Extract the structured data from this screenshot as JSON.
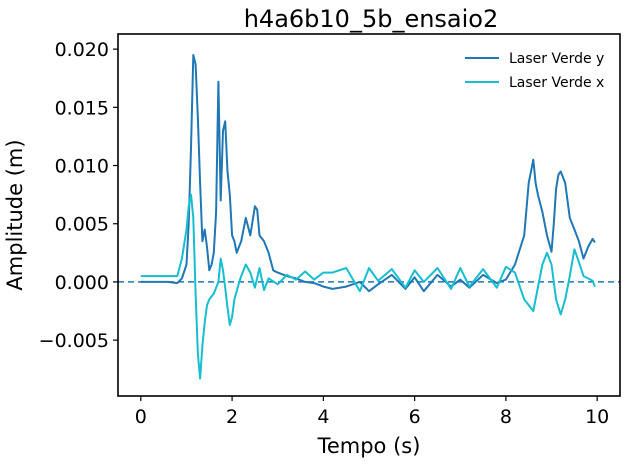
{
  "chart_data": {
    "type": "line",
    "title": "h4a6b10_5b_ensaio2",
    "xlabel": "Tempo (s)",
    "ylabel": "Amplitude (m)",
    "xlim": [
      -0.5,
      10.5
    ],
    "ylim": [
      -0.0098,
      0.0213
    ],
    "x_ticks": [
      0,
      2,
      4,
      6,
      8,
      10
    ],
    "x_tick_labels": [
      "0",
      "2",
      "4",
      "6",
      "8",
      "10"
    ],
    "y_ticks": [
      -0.005,
      0.0,
      0.005,
      0.01,
      0.015,
      0.02
    ],
    "y_tick_labels": [
      "−0.005",
      "0.000",
      "0.005",
      "0.010",
      "0.015",
      "0.020"
    ],
    "grid": false,
    "legend_position": "top-right",
    "reference_line": {
      "y": 0.0,
      "style": "dashed",
      "color": "#1f77b4"
    },
    "series": [
      {
        "name": "Laser Verde y",
        "color": "#1f77b4",
        "x": [
          0.0,
          0.3,
          0.6,
          0.8,
          0.9,
          1.0,
          1.05,
          1.1,
          1.15,
          1.2,
          1.25,
          1.3,
          1.35,
          1.4,
          1.45,
          1.5,
          1.55,
          1.6,
          1.65,
          1.7,
          1.75,
          1.8,
          1.85,
          1.9,
          1.95,
          2.0,
          2.05,
          2.1,
          2.2,
          2.3,
          2.4,
          2.5,
          2.55,
          2.6,
          2.7,
          2.8,
          2.9,
          3.0,
          3.2,
          3.4,
          3.6,
          3.8,
          4.0,
          4.2,
          4.5,
          4.8,
          5.0,
          5.2,
          5.5,
          5.8,
          6.0,
          6.2,
          6.5,
          6.8,
          7.0,
          7.2,
          7.5,
          7.8,
          8.0,
          8.2,
          8.4,
          8.5,
          8.55,
          8.6,
          8.65,
          8.7,
          8.8,
          8.9,
          9.0,
          9.05,
          9.1,
          9.15,
          9.2,
          9.25,
          9.3,
          9.35,
          9.4,
          9.5,
          9.6,
          9.7,
          9.8,
          9.9,
          9.95
        ],
        "values": [
          0.0,
          0.0,
          0.0,
          -0.0001,
          0.0003,
          0.0015,
          0.005,
          0.0115,
          0.0195,
          0.0187,
          0.014,
          0.0085,
          0.0035,
          0.0045,
          0.003,
          0.001,
          0.0015,
          0.0025,
          0.006,
          0.0172,
          0.007,
          0.013,
          0.0138,
          0.0095,
          0.0075,
          0.004,
          0.0035,
          0.0025,
          0.0035,
          0.0055,
          0.004,
          0.0065,
          0.0062,
          0.004,
          0.0035,
          0.0025,
          0.001,
          0.0008,
          0.0005,
          0.0003,
          0.0,
          -0.0001,
          -0.0004,
          -0.0006,
          -0.0004,
          0.0,
          -0.0008,
          -0.0002,
          0.0006,
          -0.0006,
          0.0004,
          -0.0008,
          0.0006,
          -0.0004,
          0.0002,
          -0.0005,
          0.0006,
          -0.0001,
          0.0002,
          0.0015,
          0.004,
          0.0085,
          0.0095,
          0.0105,
          0.0085,
          0.0075,
          0.006,
          0.004,
          0.0026,
          0.005,
          0.008,
          0.0092,
          0.0095,
          0.009,
          0.0085,
          0.007,
          0.0055,
          0.0045,
          0.0035,
          0.002,
          0.003,
          0.0037,
          0.0034
        ]
      },
      {
        "name": "Laser Verde x",
        "color": "#17becf",
        "x": [
          0.0,
          0.3,
          0.6,
          0.8,
          0.9,
          1.0,
          1.05,
          1.1,
          1.15,
          1.2,
          1.25,
          1.3,
          1.35,
          1.4,
          1.45,
          1.5,
          1.6,
          1.7,
          1.75,
          1.8,
          1.85,
          1.9,
          1.95,
          2.0,
          2.05,
          2.1,
          2.15,
          2.2,
          2.3,
          2.4,
          2.5,
          2.6,
          2.7,
          2.8,
          3.0,
          3.2,
          3.4,
          3.6,
          3.8,
          4.0,
          4.2,
          4.5,
          4.8,
          5.0,
          5.2,
          5.5,
          5.8,
          6.0,
          6.2,
          6.5,
          6.8,
          7.0,
          7.2,
          7.5,
          7.8,
          8.0,
          8.2,
          8.4,
          8.6,
          8.8,
          8.9,
          9.0,
          9.1,
          9.2,
          9.3,
          9.4,
          9.5,
          9.6,
          9.7,
          9.8,
          9.9,
          9.95
        ],
        "values": [
          0.0005,
          0.0005,
          0.0005,
          0.0005,
          0.002,
          0.0045,
          0.0065,
          0.0075,
          0.0055,
          -0.001,
          -0.0062,
          -0.0083,
          -0.0055,
          -0.0035,
          -0.002,
          -0.0015,
          -0.001,
          0.0,
          0.002,
          0.001,
          -0.0005,
          -0.0022,
          -0.0037,
          -0.003,
          -0.0015,
          -0.0008,
          -0.0001,
          0.0005,
          0.0015,
          0.0008,
          -0.0005,
          0.0012,
          -0.0007,
          0.0003,
          -0.0002,
          0.0006,
          0.0002,
          0.0009,
          0.0002,
          0.0008,
          0.0008,
          0.0012,
          -0.0008,
          0.0012,
          0.0001,
          0.0011,
          -0.0005,
          0.001,
          0.0,
          0.0012,
          -0.0006,
          0.0012,
          -0.0004,
          0.0011,
          -0.0005,
          0.0013,
          0.0008,
          -0.0015,
          -0.0025,
          0.0015,
          0.0025,
          0.0015,
          -0.0015,
          -0.0028,
          -0.0015,
          0.0005,
          0.0028,
          0.0017,
          0.0005,
          0.0003,
          0.0001,
          -0.0004
        ]
      }
    ]
  }
}
